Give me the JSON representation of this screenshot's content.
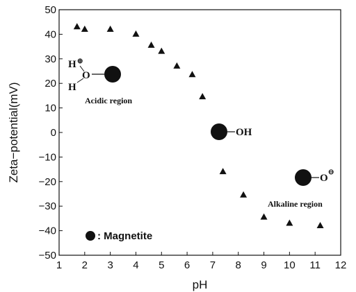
{
  "chart_data": {
    "type": "scatter",
    "xlabel": "pH",
    "ylabel": "Zeta−potential(mV)",
    "xlim": [
      1,
      12
    ],
    "ylim": [
      -50,
      50
    ],
    "xticks": [
      "1",
      "2",
      "3",
      "4",
      "5",
      "6",
      "7",
      "8",
      "9",
      "10",
      "11",
      "12"
    ],
    "yticks": [
      "−50",
      "−40",
      "−30",
      "−20",
      "−10",
      "0",
      "10",
      "20",
      "30",
      "40",
      "50"
    ],
    "grid": false,
    "marker": "triangle",
    "x": [
      1.7,
      2.0,
      3.0,
      4.0,
      4.6,
      5.0,
      5.6,
      6.2,
      6.6,
      7.4,
      8.2,
      9.0,
      10.0,
      11.2
    ],
    "y": [
      43,
      42,
      42,
      40,
      35.5,
      33,
      27,
      23.5,
      14.5,
      -16,
      -25.5,
      -34.5,
      -37,
      -38
    ],
    "annotations": {
      "acidic_label": "Acidic region",
      "alkaline_label": "Alkaline region",
      "acidic_group": {
        "h_top": "H",
        "h_charge": "⊕",
        "o": "O",
        "h_bottom": "H"
      },
      "neutral_group": "OH",
      "alkaline_group": {
        "o": "O",
        "charge": "⊖"
      },
      "legend_text": ": Magnetite"
    }
  }
}
